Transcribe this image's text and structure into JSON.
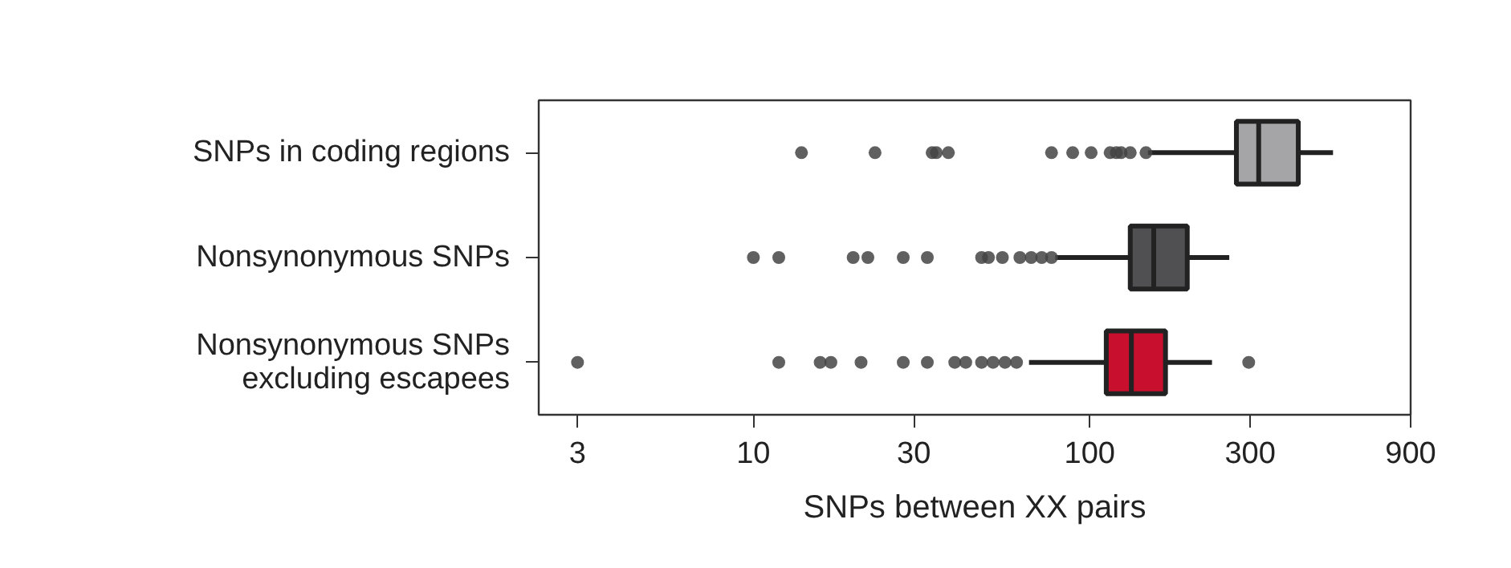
{
  "chart_data": {
    "type": "box",
    "orientation": "horizontal",
    "log": "x",
    "xlabel": "SNPs between XX pairs",
    "categories": [
      "SNPs in coding regions",
      "Nonsynonymous SNPs",
      "Nonsynonymous SNPs\nexcluding escapees"
    ],
    "colors": [
      "#a5a5a8",
      "#505052",
      "#c8102e"
    ],
    "boxes": [
      {
        "low": 149,
        "q1": 273,
        "median": 318,
        "q3": 417,
        "high": 529,
        "outliers": [
          13.9,
          23,
          34,
          35,
          38,
          77,
          89,
          101,
          115,
          120,
          124,
          132,
          147
        ]
      },
      {
        "low": 79,
        "q1": 132,
        "median": 155,
        "q3": 195,
        "high": 260,
        "outliers": [
          10,
          11.9,
          19.8,
          21.9,
          27.9,
          32.9,
          47.7,
          50,
          55,
          62,
          67,
          72,
          77
        ]
      },
      {
        "low": 66,
        "q1": 112,
        "median": 133,
        "q3": 168,
        "high": 231,
        "outliers": [
          3,
          11.9,
          15.8,
          17,
          20.9,
          27.9,
          32.9,
          39.7,
          42.8,
          47.7,
          51.6,
          56,
          60.6,
          297
        ]
      }
    ],
    "xlim": [
      2.3,
      900
    ],
    "xticks": [
      3,
      10,
      30,
      100,
      300,
      900
    ],
    "grid": false
  }
}
